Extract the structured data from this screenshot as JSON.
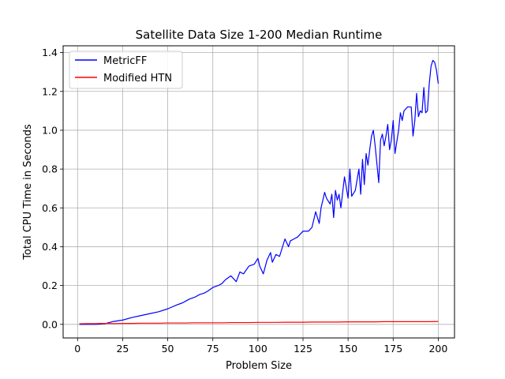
{
  "chart_data": {
    "type": "line",
    "title": "Satellite Data Size 1-200 Median Runtime",
    "xlabel": "Problem Size",
    "ylabel": "Total CPU Time in Seconds",
    "xlim": [
      -8,
      209
    ],
    "ylim": [
      -0.07,
      1.435
    ],
    "xticks": [
      0,
      25,
      50,
      75,
      100,
      125,
      150,
      175,
      200
    ],
    "yticks": [
      0.0,
      0.2,
      0.4,
      0.6,
      0.8,
      1.0,
      1.2,
      1.4
    ],
    "ytick_labels": [
      "0.0",
      "0.2",
      "0.4",
      "0.6",
      "0.8",
      "1.0",
      "1.2",
      "1.4"
    ],
    "grid": true,
    "legend_position": "top-left",
    "series": [
      {
        "name": "MetricFF",
        "color": "#0000ff",
        "x": [
          1,
          5,
          10,
          15,
          20,
          25,
          30,
          35,
          40,
          45,
          50,
          55,
          58,
          60,
          62,
          65,
          68,
          70,
          72,
          75,
          78,
          80,
          82,
          85,
          88,
          90,
          92,
          95,
          98,
          100,
          101,
          103,
          105,
          107,
          108,
          110,
          112,
          115,
          117,
          118,
          120,
          122,
          125,
          128,
          130,
          132,
          134,
          135,
          137,
          138,
          140,
          141,
          142,
          143,
          144,
          145,
          146,
          148,
          150,
          151,
          152,
          154,
          156,
          157,
          158,
          159,
          160,
          161,
          162,
          163,
          164,
          165,
          167,
          168,
          169,
          170,
          171,
          172,
          173,
          174,
          175,
          176,
          178,
          179,
          180,
          181,
          183,
          185,
          186,
          187,
          188,
          189,
          190,
          191,
          192,
          193,
          194,
          195,
          196,
          197,
          198,
          199,
          200
        ],
        "y": [
          0.0,
          0.0,
          0.0,
          0.003,
          0.015,
          0.022,
          0.035,
          0.045,
          0.055,
          0.065,
          0.08,
          0.1,
          0.11,
          0.12,
          0.13,
          0.14,
          0.155,
          0.16,
          0.17,
          0.19,
          0.2,
          0.21,
          0.23,
          0.25,
          0.22,
          0.27,
          0.26,
          0.3,
          0.31,
          0.34,
          0.3,
          0.26,
          0.33,
          0.37,
          0.32,
          0.36,
          0.35,
          0.44,
          0.4,
          0.43,
          0.44,
          0.45,
          0.48,
          0.48,
          0.5,
          0.58,
          0.52,
          0.6,
          0.68,
          0.65,
          0.62,
          0.67,
          0.55,
          0.69,
          0.64,
          0.67,
          0.6,
          0.76,
          0.65,
          0.8,
          0.66,
          0.69,
          0.8,
          0.67,
          0.85,
          0.72,
          0.88,
          0.82,
          0.9,
          0.97,
          1.0,
          0.92,
          0.73,
          0.95,
          0.98,
          0.92,
          0.97,
          1.03,
          0.9,
          0.95,
          1.05,
          0.88,
          1.0,
          1.09,
          1.05,
          1.1,
          1.12,
          1.12,
          0.97,
          1.05,
          1.19,
          1.07,
          1.1,
          1.09,
          1.22,
          1.09,
          1.1,
          1.24,
          1.33,
          1.36,
          1.35,
          1.31,
          1.24
        ]
      },
      {
        "name": "Modified HTN",
        "color": "#ff0000",
        "x": [
          1,
          5,
          10,
          15,
          20,
          25,
          30,
          35,
          40,
          45,
          50,
          55,
          60,
          65,
          70,
          75,
          80,
          85,
          90,
          95,
          100,
          105,
          110,
          115,
          120,
          125,
          130,
          135,
          140,
          145,
          150,
          155,
          160,
          165,
          170,
          175,
          180,
          185,
          190,
          195,
          200
        ],
        "y": [
          0.003,
          0.004,
          0.004,
          0.005,
          0.004,
          0.005,
          0.005,
          0.006,
          0.006,
          0.006,
          0.007,
          0.007,
          0.007,
          0.008,
          0.008,
          0.008,
          0.008,
          0.009,
          0.009,
          0.009,
          0.01,
          0.01,
          0.01,
          0.011,
          0.011,
          0.011,
          0.012,
          0.012,
          0.012,
          0.012,
          0.013,
          0.013,
          0.013,
          0.013,
          0.014,
          0.014,
          0.014,
          0.014,
          0.014,
          0.014,
          0.015
        ]
      }
    ]
  }
}
